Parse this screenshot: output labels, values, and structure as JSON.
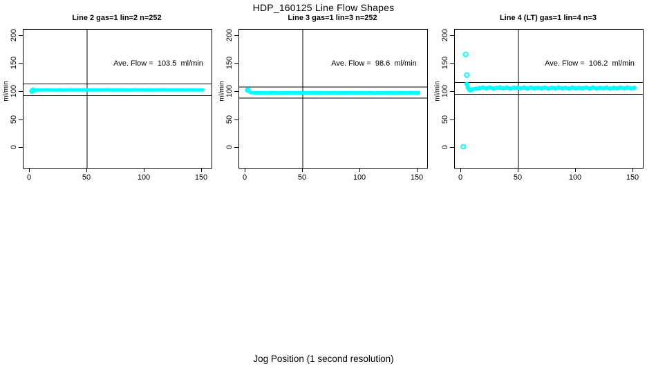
{
  "title": "HDP_160125  Line Flow Shapes",
  "xlabel": "Jog Position (1 second resolution)",
  "colors": {
    "points": "#00FFFF",
    "axis": "#000000",
    "background": "#ffffff"
  },
  "chart_data": [
    {
      "type": "scatter",
      "title": "Line 2 gas=1 lin=2 n=252",
      "annotation": "Ave. Flow =  103.5  ml/min",
      "ave_flow": 103.5,
      "ylabel": "ml/min",
      "xticks": [
        0,
        50,
        100,
        150
      ],
      "yticks": [
        0,
        50,
        100,
        150,
        200
      ],
      "xlim": [
        0,
        155
      ],
      "ylim": [
        0,
        200
      ],
      "vline_x": 50,
      "ref_lines": [
        113.9,
        93.2
      ],
      "marker_style": "solid",
      "band": [
        [
          2,
          101.5
        ],
        [
          3,
          102.8
        ],
        [
          5,
          103.3
        ],
        [
          8,
          103.6
        ],
        [
          11,
          103.2
        ],
        [
          14,
          103.7
        ],
        [
          17,
          103.4
        ],
        [
          20,
          103.6
        ],
        [
          23,
          103.2
        ],
        [
          26,
          103.7
        ],
        [
          29,
          103.5
        ],
        [
          32,
          103.3
        ],
        [
          35,
          103.8
        ],
        [
          38,
          103.4
        ],
        [
          41,
          103.6
        ],
        [
          44,
          103.3
        ],
        [
          47,
          103.7
        ],
        [
          50,
          103.5
        ],
        [
          53,
          103.4
        ],
        [
          56,
          103.7
        ],
        [
          59,
          103.3
        ],
        [
          62,
          103.6
        ],
        [
          65,
          103.4
        ],
        [
          68,
          103.8
        ],
        [
          71,
          103.3
        ],
        [
          74,
          103.6
        ],
        [
          77,
          103.4
        ],
        [
          80,
          103.7
        ],
        [
          83,
          103.3
        ],
        [
          86,
          103.6
        ],
        [
          89,
          103.5
        ],
        [
          92,
          103.8
        ],
        [
          95,
          103.4
        ],
        [
          98,
          103.6
        ],
        [
          101,
          103.3
        ],
        [
          104,
          103.7
        ],
        [
          107,
          103.4
        ],
        [
          110,
          103.6
        ],
        [
          113,
          103.5
        ],
        [
          116,
          103.8
        ],
        [
          119,
          103.3
        ],
        [
          122,
          103.6
        ],
        [
          125,
          103.4
        ],
        [
          128,
          103.7
        ],
        [
          131,
          103.3
        ],
        [
          134,
          103.6
        ],
        [
          137,
          103.5
        ],
        [
          140,
          103.7
        ],
        [
          143,
          103.4
        ],
        [
          146,
          103.6
        ],
        [
          149,
          103.4
        ],
        [
          151,
          103.5
        ]
      ],
      "outliers": [
        [
          2,
          101.5
        ],
        [
          3,
          102.8
        ]
      ]
    },
    {
      "type": "scatter",
      "title": "Line 3 gas=1 lin=3 n=252",
      "annotation": "Ave. Flow =  98.6  ml/min",
      "ave_flow": 98.6,
      "ylabel": "ml/min",
      "xticks": [
        0,
        50,
        100,
        150
      ],
      "yticks": [
        0,
        50,
        100,
        150,
        200
      ],
      "xlim": [
        0,
        155
      ],
      "ylim": [
        0,
        200
      ],
      "vline_x": 50,
      "ref_lines": [
        108.5,
        88.7
      ],
      "marker_style": "solid",
      "band": [
        [
          2,
          103.5
        ],
        [
          3,
          100.8
        ],
        [
          4,
          99.5
        ],
        [
          5,
          98.8
        ],
        [
          8,
          98.3
        ],
        [
          11,
          98.1
        ],
        [
          14,
          98.3
        ],
        [
          17,
          98.0
        ],
        [
          20,
          98.2
        ],
        [
          23,
          98.4
        ],
        [
          26,
          98.1
        ],
        [
          29,
          98.3
        ],
        [
          32,
          98.0
        ],
        [
          35,
          98.2
        ],
        [
          38,
          98.4
        ],
        [
          41,
          98.1
        ],
        [
          44,
          98.3
        ],
        [
          47,
          98.2
        ],
        [
          50,
          98.0
        ],
        [
          53,
          98.3
        ],
        [
          56,
          98.1
        ],
        [
          59,
          98.4
        ],
        [
          62,
          98.2
        ],
        [
          65,
          98.0
        ],
        [
          68,
          98.3
        ],
        [
          71,
          98.1
        ],
        [
          74,
          98.2
        ],
        [
          77,
          98.4
        ],
        [
          80,
          98.0
        ],
        [
          83,
          98.2
        ],
        [
          86,
          98.3
        ],
        [
          89,
          98.1
        ],
        [
          92,
          98.4
        ],
        [
          95,
          98.2
        ],
        [
          98,
          98.0
        ],
        [
          101,
          98.3
        ],
        [
          104,
          98.1
        ],
        [
          107,
          98.2
        ],
        [
          110,
          98.4
        ],
        [
          113,
          98.0
        ],
        [
          116,
          98.2
        ],
        [
          119,
          98.3
        ],
        [
          122,
          98.1
        ],
        [
          125,
          98.4
        ],
        [
          128,
          98.2
        ],
        [
          131,
          98.0
        ],
        [
          134,
          98.3
        ],
        [
          137,
          98.1
        ],
        [
          140,
          98.2
        ],
        [
          143,
          98.4
        ],
        [
          146,
          98.1
        ],
        [
          149,
          98.3
        ],
        [
          151,
          98.2
        ]
      ],
      "outliers": [
        [
          2,
          103.5
        ]
      ]
    },
    {
      "type": "scatter",
      "title": "Line 4 (LT) gas=1 lin=4 n=3",
      "annotation": "Ave. Flow =  106.2  ml/min",
      "ave_flow": 106.2,
      "ylabel": "ml/min",
      "xticks": [
        0,
        50,
        100,
        150
      ],
      "yticks": [
        0,
        50,
        100,
        150,
        200
      ],
      "xlim": [
        0,
        155
      ],
      "ylim": [
        0,
        200
      ],
      "vline_x": 50,
      "ref_lines": [
        116.8,
        95.6
      ],
      "marker_style": "rings",
      "band": [
        [
          5,
          114
        ],
        [
          6,
          108
        ],
        [
          7,
          104.5
        ],
        [
          8,
          103
        ],
        [
          10,
          104.5
        ],
        [
          13,
          105.5
        ],
        [
          16,
          106.5
        ],
        [
          19,
          107.5
        ],
        [
          22,
          106.5
        ],
        [
          25,
          107.5
        ],
        [
          28,
          106
        ],
        [
          31,
          107
        ],
        [
          34,
          107.5
        ],
        [
          37,
          106.5
        ],
        [
          40,
          107.5
        ],
        [
          43,
          106
        ],
        [
          46,
          107.5
        ],
        [
          49,
          107
        ],
        [
          52,
          106.5
        ],
        [
          55,
          107.5
        ],
        [
          58,
          106
        ],
        [
          61,
          107.5
        ],
        [
          64,
          106.5
        ],
        [
          67,
          107
        ],
        [
          70,
          106.5
        ],
        [
          73,
          107.5
        ],
        [
          76,
          106
        ],
        [
          79,
          107
        ],
        [
          82,
          106.5
        ],
        [
          85,
          107.5
        ],
        [
          88,
          106.5
        ],
        [
          91,
          107
        ],
        [
          94,
          106
        ],
        [
          97,
          107.5
        ],
        [
          100,
          106.5
        ],
        [
          103,
          107
        ],
        [
          106,
          106.5
        ],
        [
          109,
          107.5
        ],
        [
          112,
          106
        ],
        [
          115,
          107.5
        ],
        [
          118,
          106.5
        ],
        [
          121,
          107
        ],
        [
          124,
          106.5
        ],
        [
          127,
          107.5
        ],
        [
          130,
          106
        ],
        [
          133,
          107
        ],
        [
          136,
          106.5
        ],
        [
          139,
          107.5
        ],
        [
          142,
          106.5
        ],
        [
          145,
          107.5
        ],
        [
          148,
          106.5
        ],
        [
          151,
          107
        ]
      ],
      "outliers": [
        [
          4,
          167
        ],
        [
          5,
          130
        ],
        [
          2,
          2
        ]
      ]
    }
  ]
}
